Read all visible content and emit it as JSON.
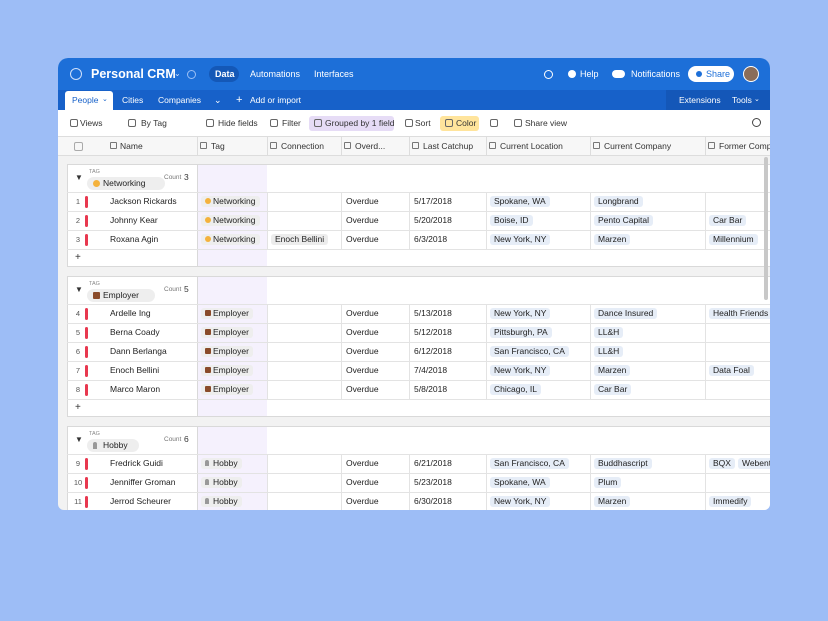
{
  "header": {
    "base_name": "Personal CRM",
    "nav": [
      "Data",
      "Automations",
      "Interfaces"
    ],
    "help": "Help",
    "notifications": "Notifications",
    "share": "Share"
  },
  "tabs": {
    "tables": [
      "People",
      "Cities",
      "Companies"
    ],
    "add": "Add or import",
    "extensions": "Extensions",
    "tools": "Tools"
  },
  "toolbar": {
    "views": "Views",
    "view_name": "By Tag",
    "hide_fields": "Hide fields",
    "filter": "Filter",
    "group": "Grouped by 1 field",
    "sort": "Sort",
    "color": "Color",
    "share_view": "Share view"
  },
  "table": {
    "columns": [
      "Name",
      "Tag",
      "Connection",
      "Overd...",
      "Last Catchup",
      "Current Location",
      "Current Company",
      "Former Comp"
    ],
    "groups": [
      {
        "field": "TAG",
        "value": "Networking",
        "count_label": "Count",
        "count": 3,
        "rows": [
          {
            "num": 1,
            "name": "Jackson Rickards",
            "tag": "Networking",
            "status": "Overdue",
            "last_catchup": "5/17/2018",
            "location": "Spokane, WA",
            "company": "Longbrand"
          },
          {
            "num": 2,
            "name": "Johnny Kear",
            "tag": "Networking",
            "status": "Overdue",
            "last_catchup": "5/20/2018",
            "location": "Boise, ID",
            "company": "Pento Capital",
            "former": [
              "Car Bar"
            ]
          },
          {
            "num": 3,
            "name": "Roxana Agin",
            "tag": "Networking",
            "connection": "Enoch Bellini",
            "status": "Overdue",
            "last_catchup": "6/3/2018",
            "location": "New York, NY",
            "company": "Marzen",
            "former": [
              "Millennium"
            ]
          }
        ]
      },
      {
        "field": "TAG",
        "value": "Employer",
        "count_label": "Count",
        "count": 5,
        "rows": [
          {
            "num": 4,
            "name": "Ardelle Ing",
            "tag": "Employer",
            "status": "Overdue",
            "last_catchup": "5/13/2018",
            "location": "New York, NY",
            "company": "Dance Insured",
            "former": [
              "Health Friends"
            ]
          },
          {
            "num": 5,
            "name": "Berna Coady",
            "tag": "Employer",
            "status": "Overdue",
            "last_catchup": "5/12/2018",
            "location": "Pittsburgh, PA",
            "company": "LL&H"
          },
          {
            "num": 6,
            "name": "Dann Berlanga",
            "tag": "Employer",
            "status": "Overdue",
            "last_catchup": "6/12/2018",
            "location": "San Francisco, CA",
            "company": "LL&H"
          },
          {
            "num": 7,
            "name": "Enoch Bellini",
            "tag": "Employer",
            "status": "Overdue",
            "last_catchup": "7/4/2018",
            "location": "New York, NY",
            "company": "Marzen",
            "former": [
              "Data Foal"
            ]
          },
          {
            "num": 8,
            "name": "Marco Maron",
            "tag": "Employer",
            "status": "Overdue",
            "last_catchup": "5/8/2018",
            "location": "Chicago, IL",
            "company": "Car Bar"
          }
        ]
      },
      {
        "field": "TAG",
        "value": "Hobby",
        "count_label": "Count",
        "count": 6,
        "rows": [
          {
            "num": 9,
            "name": "Fredrick Guidi",
            "tag": "Hobby",
            "status": "Overdue",
            "last_catchup": "6/21/2018",
            "location": "San Francisco, CA",
            "company": "Buddhascript",
            "former": [
              "BQX",
              "Webent"
            ]
          },
          {
            "num": 10,
            "name": "Jenniffer Groman",
            "tag": "Hobby",
            "status": "Overdue",
            "last_catchup": "5/23/2018",
            "location": "Spokane, WA",
            "company": "Plum"
          },
          {
            "num": 11,
            "name": "Jerrod Scheurer",
            "tag": "Hobby",
            "status": "Overdue",
            "last_catchup": "6/30/2018",
            "location": "New York, NY",
            "company": "Marzen",
            "former": [
              "Immedify"
            ]
          }
        ]
      }
    ]
  }
}
